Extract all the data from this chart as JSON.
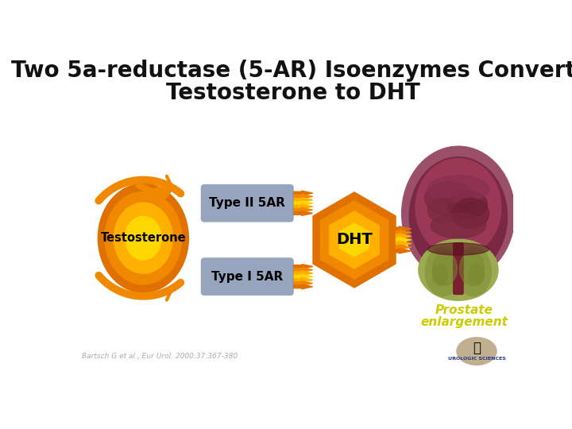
{
  "title_line1": "Two 5a-reductase (5-AR) Isoenzymes Convert",
  "title_line2": "Testosterone to DHT",
  "title_fontsize": 20,
  "title_color": "#111111",
  "background_color": "#ffffff",
  "testosterone_label": "Testosterone",
  "dht_label": "DHT",
  "type2_label": "Type II 5AR",
  "type1_label": "Type I 5AR",
  "prostate_label_line1": "Prostate",
  "prostate_label_line2": "enlargement",
  "citation": "Bartsch G et al., Eur Urol. 2000;37:367-380",
  "orange_dark": "#E07000",
  "orange_mid": "#F08800",
  "orange_bright": "#FFB000",
  "yellow": "#FFD700",
  "box_color": "#8090B0",
  "prostate_outer": "#9B5070",
  "prostate_mid": "#7A2845",
  "prostate_inner": "#8B3555",
  "prostate_tissue": "#C07090",
  "prostate_green": "#9BAB50",
  "prostate_green2": "#7A8A35",
  "prostate_stem": "#8B2030",
  "prostate_text_color": "#CCCC00",
  "logo_bg": "#C0B090"
}
